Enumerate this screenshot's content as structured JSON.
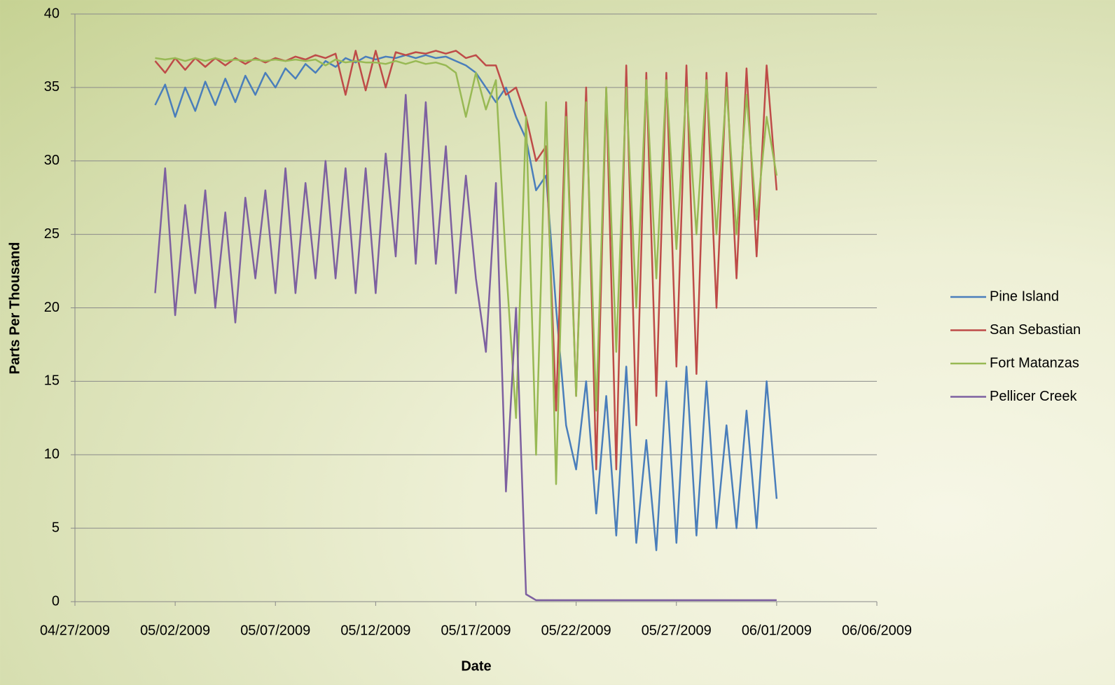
{
  "chart_data": {
    "type": "line",
    "x_label": "Date",
    "y_label": "Parts Per Thousand",
    "x": [
      4,
      4.5,
      5,
      5.5,
      6,
      6.5,
      7,
      7.5,
      8,
      8.5,
      9,
      9.5,
      10,
      10.5,
      11,
      11.5,
      12,
      12.5,
      13,
      13.5,
      14,
      14.5,
      15,
      15.5,
      16,
      16.5,
      17,
      17.5,
      18,
      18.5,
      19,
      19.5,
      20,
      20.5,
      21,
      21.5,
      22,
      22.5,
      23,
      23.5,
      24,
      24.5,
      25,
      25.5,
      26,
      26.5,
      27,
      27.5,
      28,
      28.5,
      29,
      29.5,
      30,
      30.5,
      31,
      31.5,
      32,
      32.5,
      33,
      33.5,
      34,
      34.5,
      35
    ],
    "xlim": [
      0,
      40
    ],
    "xticks": [
      {
        "value": 0,
        "label": "04/27/2009"
      },
      {
        "value": 5,
        "label": "05/02/2009"
      },
      {
        "value": 10,
        "label": "05/07/2009"
      },
      {
        "value": 15,
        "label": "05/12/2009"
      },
      {
        "value": 20,
        "label": "05/17/2009"
      },
      {
        "value": 25,
        "label": "05/22/2009"
      },
      {
        "value": 30,
        "label": "05/27/2009"
      },
      {
        "value": 35,
        "label": "06/01/2009"
      },
      {
        "value": 40,
        "label": "06/06/2009"
      }
    ],
    "ylim": [
      0,
      40
    ],
    "yticks": [
      0,
      5,
      10,
      15,
      20,
      25,
      30,
      35,
      40
    ],
    "grid": true,
    "legend": "right",
    "series": [
      {
        "name": "Pine Island",
        "color": "#4a7ebb",
        "values": [
          33.8,
          35.2,
          33,
          35,
          33.4,
          35.4,
          33.8,
          35.6,
          34,
          35.8,
          34.5,
          36,
          35,
          36.3,
          35.6,
          36.6,
          36,
          36.8,
          36.4,
          37,
          36.7,
          37.1,
          36.9,
          37.1,
          37,
          37.2,
          37,
          37.2,
          37,
          37.1,
          36.8,
          36.5,
          36,
          35,
          34,
          35,
          33,
          31.5,
          28,
          29,
          20,
          12,
          9,
          15,
          6,
          14,
          4.5,
          16,
          4,
          11,
          3.5,
          15,
          4,
          16,
          4.5,
          15,
          5,
          12,
          5,
          13,
          5,
          15,
          7
        ]
      },
      {
        "name": "San Sebastian",
        "color": "#be4b48",
        "values": [
          36.8,
          36,
          37,
          36.2,
          37,
          36.4,
          37,
          36.5,
          37,
          36.6,
          37,
          36.7,
          37,
          36.8,
          37.1,
          36.9,
          37.2,
          37,
          37.3,
          34.5,
          37.5,
          34.8,
          37.5,
          35,
          37.4,
          37.2,
          37.4,
          37.3,
          37.5,
          37.3,
          37.5,
          37,
          37.2,
          36.5,
          36.5,
          34.5,
          35,
          33,
          30,
          31,
          13,
          34,
          14,
          35,
          9,
          35,
          9,
          36.5,
          12,
          36,
          14,
          36,
          16,
          36.5,
          15.5,
          36,
          20,
          36,
          22,
          36.3,
          23.5,
          36.5,
          28
        ]
      },
      {
        "name": "Fort Matanzas",
        "color": "#98b954",
        "values": [
          37,
          36.9,
          37,
          36.8,
          37,
          36.8,
          37,
          36.8,
          36.9,
          36.8,
          36.9,
          36.8,
          36.9,
          36.8,
          36.9,
          36.8,
          36.9,
          36.5,
          36.9,
          36.7,
          36.8,
          36.7,
          36.7,
          36.6,
          36.8,
          36.6,
          36.8,
          36.6,
          36.7,
          36.5,
          36,
          33,
          36,
          33.5,
          35.5,
          23,
          12.5,
          33,
          10,
          34,
          8,
          33,
          14,
          34,
          13,
          35,
          17,
          35,
          20,
          35.5,
          22,
          35.5,
          24,
          35,
          25,
          35.5,
          25,
          35,
          25,
          34.5,
          26,
          33,
          29
        ]
      },
      {
        "name": "Pellicer Creek",
        "color": "#7d60a0",
        "values": [
          21,
          29.5,
          19.5,
          27,
          21,
          28,
          20,
          26.5,
          19,
          27.5,
          22,
          28,
          21,
          29.5,
          21,
          28.5,
          22,
          30,
          22,
          29.5,
          21,
          29.5,
          21,
          30.5,
          23.5,
          34.5,
          23,
          34,
          23,
          31,
          21,
          29,
          22,
          17,
          28.5,
          7.5,
          20,
          0.5,
          0.1,
          0.1,
          0.1,
          0.1,
          0.1,
          0.1,
          0.1,
          0.1,
          0.1,
          0.1,
          0.1,
          0.1,
          0.1,
          0.1,
          0.1,
          0.1,
          0.1,
          0.1,
          0.1,
          0.1,
          0.1,
          0.1,
          0.1,
          0.1,
          0.1
        ]
      }
    ]
  }
}
